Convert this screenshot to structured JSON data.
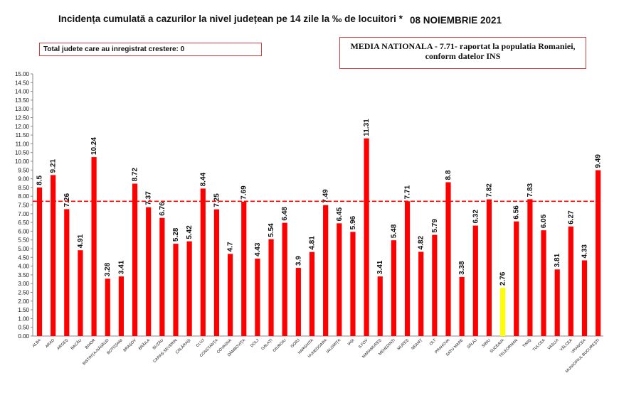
{
  "header": {
    "title": "Incidența cumulată a cazurilor la nivel județean pe 14 zile la ‰ de locuitori *",
    "date": "08 NOIEMBRIE 2021"
  },
  "info_left": "Total judete care au inregistrat crestere: 0",
  "info_right": {
    "line1": "MEDIA NATIONALA - 7.71-  raportat la populatia Romaniei,",
    "line2": "conform datelor INS"
  },
  "colors": {
    "bar": "#ff0000",
    "highlight_bar": "#ffff00",
    "mean_line": "#ff0000"
  },
  "chart_data": {
    "type": "bar",
    "categories": [
      "ALBA",
      "ARAD",
      "ARGEȘ",
      "BACĂU",
      "BIHOR",
      "BISTRIȚA-NĂSĂUD",
      "BOTOȘANI",
      "BRAȘOV",
      "BRĂILA",
      "BUZĂU",
      "CARAȘ-SEVERIN",
      "CĂLĂRAȘI",
      "CLUJ",
      "CONSTANȚA",
      "COVASNA",
      "DÂMBOVIȚA",
      "DOLJ",
      "GALAȚI",
      "GIURGIU",
      "GORJ",
      "HARGHITA",
      "HUNEDOARA",
      "IALOMIȚA",
      "IAȘI",
      "ILFOV",
      "MARAMUREȘ",
      "MEHEDINȚI",
      "MUREȘ",
      "NEAMȚ",
      "OLT",
      "PRAHOVA",
      "SATU MARE",
      "SĂLAJ",
      "SIBIU",
      "SUCEAVA",
      "TELEORMAN",
      "TIMIȘ",
      "TULCEA",
      "VASLUI",
      "VÂLCEA",
      "VRANCEA",
      "MUNICIPIUL BUCUREȘTI"
    ],
    "values": [
      8.5,
      9.21,
      7.26,
      4.91,
      10.24,
      3.28,
      3.41,
      8.72,
      7.37,
      6.76,
      5.28,
      5.42,
      8.44,
      7.25,
      4.7,
      7.69,
      4.43,
      5.54,
      6.48,
      3.9,
      4.81,
      7.49,
      6.45,
      5.96,
      11.31,
      3.41,
      5.48,
      7.71,
      4.82,
      5.79,
      8.8,
      3.38,
      6.32,
      7.82,
      2.76,
      6.56,
      7.83,
      6.05,
      3.81,
      6.27,
      4.33,
      9.49
    ],
    "value_labels": [
      "8.5",
      "9.21",
      "7.26",
      "4.91",
      "10.24",
      "3.28",
      "3.41",
      "8.72",
      "7.37",
      "6.76",
      "5.28",
      "5.42",
      "8.44",
      "7.25",
      "4.7",
      "7.69",
      "4.43",
      "5.54",
      "6.48",
      "3.9",
      "4.81",
      "7.49",
      "6.45",
      "5.96",
      "11.31",
      "3.41",
      "5.48",
      "7.71",
      "4.82",
      "5.79",
      "8.8",
      "3.38",
      "6.32",
      "7.82",
      "2.76",
      "6.56",
      "7.83",
      "6.05",
      "3.81",
      "6.27",
      "4.33",
      "9.49"
    ],
    "highlight_index": 34,
    "mean_value": 7.71,
    "ylim": [
      0,
      15
    ],
    "ytick_step": 0.5,
    "title": "Incidența cumulată a cazurilor la nivel județean pe 14 zile la ‰ de locuitori *",
    "xlabel": "",
    "ylabel": "",
    "grid": false,
    "legend": "none"
  }
}
